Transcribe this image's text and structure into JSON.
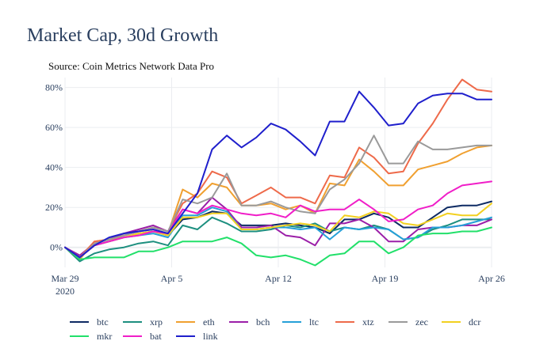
{
  "chart_data": {
    "type": "line",
    "title": "Market Cap, 30d Growth",
    "subtitle": "Source: Coin Metrics Network Data Pro",
    "xlabel": "",
    "ylabel": "",
    "x_start": "2020-03-29",
    "x_end": "2020-04-26",
    "x_ticks": [
      {
        "date": "2020-03-29",
        "label": "Mar 29",
        "sublabel": "2020"
      },
      {
        "date": "2020-04-05",
        "label": "Apr 5",
        "sublabel": ""
      },
      {
        "date": "2020-04-12",
        "label": "Apr 12",
        "sublabel": ""
      },
      {
        "date": "2020-04-19",
        "label": "Apr 19",
        "sublabel": ""
      },
      {
        "date": "2020-04-26",
        "label": "Apr 26",
        "sublabel": ""
      }
    ],
    "ylim": [
      -10,
      85
    ],
    "y_ticks": [
      {
        "value": 0,
        "label": "0%"
      },
      {
        "value": 20,
        "label": "20%"
      },
      {
        "value": 40,
        "label": "40%"
      },
      {
        "value": 60,
        "label": "60%"
      },
      {
        "value": 80,
        "label": "80%"
      }
    ],
    "grid": true,
    "legend_position": "bottom",
    "series": [
      {
        "name": "btc",
        "color": "#0d2a63",
        "values": [
          0,
          -5,
          1,
          3,
          5,
          7,
          8,
          6,
          14,
          15,
          18,
          17,
          11,
          11,
          11,
          12,
          11,
          10,
          7,
          14,
          14,
          17,
          15,
          10,
          10,
          15,
          20,
          21,
          21,
          23
        ]
      },
      {
        "name": "xrp",
        "color": "#1d8f7f",
        "values": [
          0,
          -7,
          -3,
          -1,
          0,
          2,
          3,
          1,
          11,
          9,
          15,
          12,
          8,
          8,
          9,
          11,
          10,
          12,
          8,
          10,
          9,
          11,
          9,
          4,
          5,
          9,
          11,
          14,
          14,
          14
        ]
      },
      {
        "name": "eth",
        "color": "#f0a030",
        "values": [
          0,
          -6,
          3,
          4,
          5,
          7,
          8,
          7,
          29,
          25,
          32,
          30,
          21,
          21,
          22,
          19,
          21,
          17,
          32,
          31,
          44,
          38,
          31,
          31,
          39,
          41,
          43,
          47,
          50,
          51
        ]
      },
      {
        "name": "bch",
        "color": "#9b1fa8",
        "values": [
          0,
          -4,
          2,
          4,
          7,
          9,
          11,
          8,
          19,
          17,
          25,
          19,
          10,
          10,
          11,
          6,
          5,
          1,
          12,
          12,
          14,
          10,
          3,
          3,
          9,
          10,
          10,
          11,
          11,
          14
        ]
      },
      {
        "name": "ltc",
        "color": "#26a0d8",
        "values": [
          0,
          -5,
          1,
          3,
          5,
          6,
          7,
          5,
          16,
          16,
          20,
          18,
          9,
          9,
          10,
          10,
          9,
          10,
          4,
          10,
          9,
          10,
          9,
          4,
          5,
          10,
          10,
          11,
          13,
          15
        ]
      },
      {
        "name": "xtz",
        "color": "#ee6a4a",
        "values": [
          0,
          -5,
          3,
          4,
          6,
          8,
          10,
          8,
          22,
          27,
          38,
          35,
          22,
          26,
          30,
          25,
          25,
          22,
          36,
          35,
          50,
          45,
          37,
          38,
          52,
          62,
          74,
          84,
          79,
          78
        ]
      },
      {
        "name": "zec",
        "color": "#9a9a9a",
        "values": [
          0,
          -5,
          2,
          4,
          6,
          8,
          10,
          8,
          24,
          22,
          25,
          37,
          21,
          21,
          23,
          20,
          18,
          17,
          29,
          34,
          42,
          56,
          42,
          42,
          53,
          49,
          49,
          50,
          51,
          51
        ]
      },
      {
        "name": "dcr",
        "color": "#f2d020",
        "values": [
          0,
          -5,
          1,
          3,
          5,
          7,
          8,
          6,
          15,
          15,
          17,
          17,
          9,
          9,
          10,
          11,
          12,
          11,
          8,
          16,
          15,
          18,
          17,
          12,
          11,
          14,
          17,
          16,
          16,
          22
        ]
      },
      {
        "name": "mkr",
        "color": "#22e06a",
        "values": [
          0,
          -6,
          -5,
          -5,
          -5,
          -2,
          -2,
          0,
          3,
          3,
          3,
          5,
          2,
          -4,
          -5,
          -4,
          -6,
          -9,
          -4,
          -3,
          3,
          3,
          -3,
          0,
          6,
          7,
          7,
          8,
          8,
          10
        ]
      },
      {
        "name": "bat",
        "color": "#f01ec8",
        "values": [
          0,
          -5,
          1,
          3,
          5,
          6,
          8,
          7,
          19,
          17,
          21,
          19,
          17,
          16,
          17,
          15,
          21,
          18,
          19,
          19,
          24,
          19,
          13,
          14,
          19,
          21,
          27,
          31,
          32,
          33
        ]
      },
      {
        "name": "link",
        "color": "#1f1fcc",
        "values": [
          0,
          -5,
          1,
          5,
          7,
          8,
          9,
          7,
          17,
          27,
          49,
          56,
          50,
          55,
          62,
          59,
          53,
          46,
          63,
          63,
          78,
          70,
          61,
          62,
          72,
          76,
          77,
          77,
          74,
          74
        ]
      }
    ]
  }
}
